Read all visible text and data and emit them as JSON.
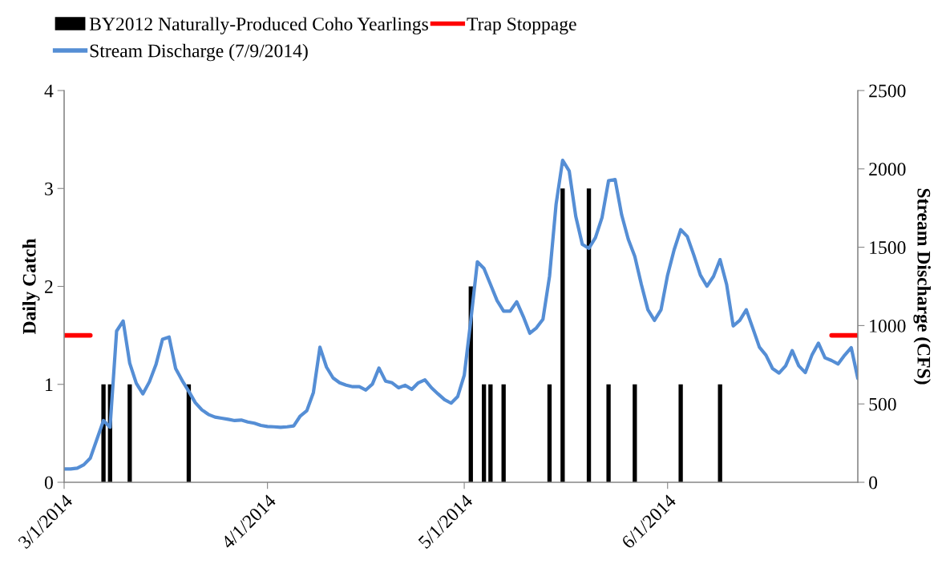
{
  "chart_data": {
    "type": "bar",
    "ylabel": "Daily Catch",
    "y2label": "Stream Discharge (CFS)",
    "xlim": [
      "2014-03-01",
      "2014-06-30"
    ],
    "xticks": [
      {
        "value": "2014-03-01",
        "label": "3/1/2014"
      },
      {
        "value": "2014-04-01",
        "label": "4/1/2014"
      },
      {
        "value": "2014-05-01",
        "label": "5/1/2014"
      },
      {
        "value": "2014-06-01",
        "label": "6/1/2014"
      }
    ],
    "ylim": [
      0,
      4
    ],
    "yticks": [
      0,
      1,
      2,
      3,
      4
    ],
    "y2lim": [
      0,
      2500
    ],
    "y2ticks": [
      0,
      500,
      1000,
      1500,
      2000,
      2500
    ],
    "grid": false,
    "legend": "top",
    "series": [
      {
        "name": "BY2012 Naturally-Produced Coho Yearlings",
        "color": "#000000",
        "x": [
          "2014-03-07",
          "2014-03-08",
          "2014-03-11",
          "2014-03-20",
          "2014-05-02",
          "2014-05-04",
          "2014-05-05",
          "2014-05-07",
          "2014-05-14",
          "2014-05-16",
          "2014-05-20",
          "2014-05-23",
          "2014-05-27",
          "2014-06-03",
          "2014-06-09"
        ],
        "values": [
          1,
          1,
          1,
          1,
          2,
          1,
          1,
          1,
          1,
          3,
          3,
          1,
          1,
          1,
          1
        ]
      },
      {
        "name": "Trap Stoppage",
        "type": "line",
        "color": "#ff0000",
        "x": [
          "2014-03-01",
          "2014-03-05",
          "2014-03-06",
          "2014-06-26",
          "2014-06-30"
        ],
        "values": [
          1.5,
          1.5,
          null,
          1.5,
          1.5
        ]
      },
      {
        "name": "Stream Discharge (7/9/2014)",
        "type": "line",
        "axis": "y2",
        "color": "#558ed5",
        "x": [
          "2014-03-01",
          "2014-03-02",
          "2014-03-03",
          "2014-03-04",
          "2014-03-05",
          "2014-03-06",
          "2014-03-07",
          "2014-03-08",
          "2014-03-09",
          "2014-03-10",
          "2014-03-11",
          "2014-03-12",
          "2014-03-13",
          "2014-03-14",
          "2014-03-15",
          "2014-03-16",
          "2014-03-17",
          "2014-03-18",
          "2014-03-19",
          "2014-03-20",
          "2014-03-21",
          "2014-03-22",
          "2014-03-23",
          "2014-03-24",
          "2014-03-25",
          "2014-03-26",
          "2014-03-27",
          "2014-03-28",
          "2014-03-29",
          "2014-03-30",
          "2014-03-31",
          "2014-04-01",
          "2014-04-02",
          "2014-04-03",
          "2014-04-04",
          "2014-04-05",
          "2014-04-06",
          "2014-04-07",
          "2014-04-08",
          "2014-04-09",
          "2014-04-10",
          "2014-04-11",
          "2014-04-12",
          "2014-04-13",
          "2014-04-14",
          "2014-04-15",
          "2014-04-16",
          "2014-04-17",
          "2014-04-18",
          "2014-04-19",
          "2014-04-20",
          "2014-04-21",
          "2014-04-22",
          "2014-04-23",
          "2014-04-24",
          "2014-04-25",
          "2014-04-26",
          "2014-04-27",
          "2014-04-28",
          "2014-04-29",
          "2014-04-30",
          "2014-05-01",
          "2014-05-02",
          "2014-05-03",
          "2014-05-04",
          "2014-05-05",
          "2014-05-06",
          "2014-05-07",
          "2014-05-08",
          "2014-05-09",
          "2014-05-10",
          "2014-05-11",
          "2014-05-12",
          "2014-05-13",
          "2014-05-14",
          "2014-05-15",
          "2014-05-16",
          "2014-05-17",
          "2014-05-18",
          "2014-05-19",
          "2014-05-20",
          "2014-05-21",
          "2014-05-22",
          "2014-05-23",
          "2014-05-24",
          "2014-05-25",
          "2014-05-26",
          "2014-05-27",
          "2014-05-28",
          "2014-05-29",
          "2014-05-30",
          "2014-05-31",
          "2014-06-01",
          "2014-06-02",
          "2014-06-03",
          "2014-06-04",
          "2014-06-05",
          "2014-06-06",
          "2014-06-07",
          "2014-06-08",
          "2014-06-09",
          "2014-06-10",
          "2014-06-11",
          "2014-06-12",
          "2014-06-13",
          "2014-06-14",
          "2014-06-15",
          "2014-06-16",
          "2014-06-17",
          "2014-06-18",
          "2014-06-19",
          "2014-06-20",
          "2014-06-21",
          "2014-06-22",
          "2014-06-23",
          "2014-06-24",
          "2014-06-25",
          "2014-06-26",
          "2014-06-27",
          "2014-06-28",
          "2014-06-29",
          "2014-06-30"
        ],
        "values": [
          85,
          85,
          90,
          112,
          155,
          275,
          394,
          351,
          965,
          1029,
          760,
          632,
          564,
          641,
          751,
          913,
          927,
          726,
          649,
          581,
          508,
          462,
          433,
          416,
          409,
          402,
          394,
          397,
          385,
          377,
          363,
          356,
          354,
          351,
          354,
          360,
          423,
          457,
          573,
          862,
          735,
          666,
          635,
          620,
          610,
          610,
          589,
          627,
          729,
          646,
          635,
          603,
          619,
          593,
          635,
          654,
          603,
          564,
          527,
          505,
          547,
          683,
          1033,
          1407,
          1365,
          1263,
          1160,
          1092,
          1092,
          1152,
          1058,
          951,
          985,
          1041,
          1314,
          1774,
          2055,
          1987,
          1697,
          1518,
          1493,
          1561,
          1689,
          1924,
          1932,
          1706,
          1552,
          1442,
          1263,
          1101,
          1033,
          1101,
          1322,
          1484,
          1612,
          1569,
          1450,
          1322,
          1251,
          1314,
          1421,
          1263,
          998,
          1033,
          1101,
          982,
          862,
          811,
          726,
          697,
          743,
          840,
          743,
          700,
          811,
          888,
          794,
          777,
          755,
          811,
          859,
          663
        ]
      }
    ]
  }
}
